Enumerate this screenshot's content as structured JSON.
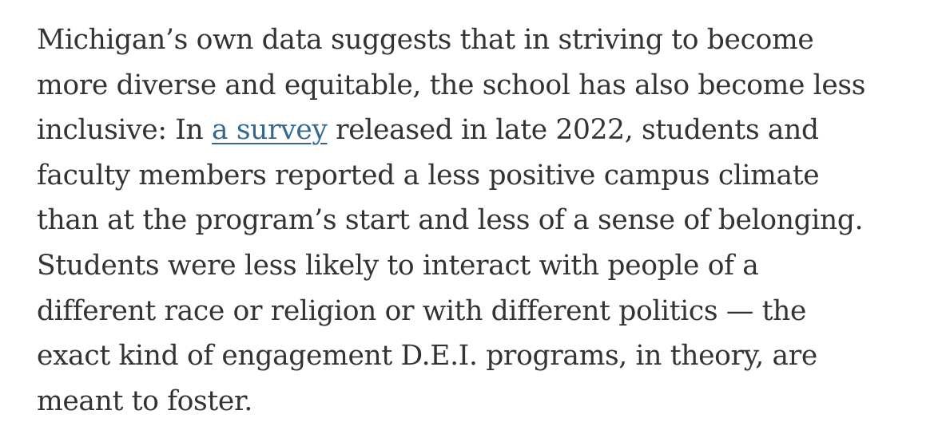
{
  "article": {
    "paragraph": {
      "line1": "Michigan’s own data suggests that in striving to become",
      "line2": "more diverse and equitable, the school has also become less",
      "line3_before": "inclusive: In ",
      "link_text": "a survey",
      "line3_after": " released in late 2022, students and",
      "line4": "faculty members reported a less positive campus climate",
      "line5": "than at the program’s start and less of a sense of belonging.",
      "line6": "Students were less likely to interact with people of a",
      "line7": "different race or religion or with different politics — the",
      "line8": "exact kind of engagement D.E.I. programs, in theory, are",
      "line9": "meant to foster."
    },
    "link_color": "#326891",
    "text_color": "#333333"
  }
}
